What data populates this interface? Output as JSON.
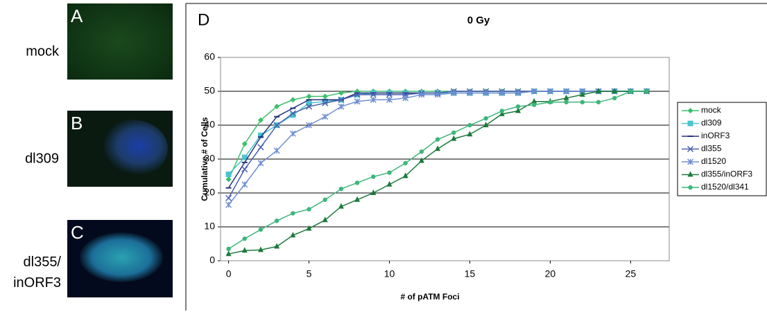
{
  "panels": [
    {
      "letter": "A",
      "label": "mock"
    },
    {
      "letter": "B",
      "label": "dl309"
    },
    {
      "letter": "C",
      "label": "dl355/ inORF3"
    }
  ],
  "chart_data": {
    "type": "line",
    "label": "D",
    "title": "0 Gy",
    "x_label": "# of pATM Foci",
    "y_label": "Cumulative # of Cells",
    "x": [
      0,
      1,
      2,
      3,
      4,
      5,
      6,
      7,
      8,
      9,
      10,
      11,
      12,
      13,
      14,
      15,
      16,
      17,
      18,
      19,
      20,
      21,
      22,
      23,
      24,
      25,
      26
    ],
    "xlim": [
      -0.5,
      27.4
    ],
    "xticks": [
      0,
      5,
      10,
      15,
      20,
      25
    ],
    "ylim": [
      0,
      60
    ],
    "yticks": [
      0,
      10,
      20,
      30,
      40,
      50,
      60
    ],
    "grid": true,
    "legend": "right",
    "series": [
      {
        "name": "mock",
        "color": "#3dbf6a",
        "marker": "diamond",
        "values": [
          24,
          34.5,
          41.5,
          45.5,
          47.5,
          48.5,
          48.5,
          49.5,
          50,
          50,
          50,
          50,
          50,
          50,
          50,
          50,
          50,
          50,
          50,
          50,
          50,
          50,
          50,
          50,
          50,
          50,
          50
        ]
      },
      {
        "name": "dl309",
        "color": "#4cc3cf",
        "marker": "square",
        "values": [
          25.5,
          30.5,
          37,
          40,
          43,
          46.5,
          47,
          47.5,
          49,
          49.5,
          49.5,
          49.5,
          49.5,
          49.5,
          49.5,
          49.5,
          49.5,
          49.5,
          49.5,
          50,
          50,
          50,
          50,
          50,
          50,
          50,
          50
        ]
      },
      {
        "name": "inORF3",
        "color": "#25307a",
        "marker": "dash",
        "values": [
          21.5,
          29,
          36.5,
          42.5,
          45,
          47.5,
          47.5,
          47.5,
          49.5,
          49.5,
          49.5,
          49.5,
          49.5,
          49.5,
          50,
          50,
          50,
          50,
          50,
          50,
          50,
          50,
          50,
          50,
          50,
          50,
          50
        ]
      },
      {
        "name": "dl355",
        "color": "#4a5fae",
        "marker": "cross",
        "values": [
          18.5,
          27,
          33.5,
          40,
          43.5,
          45.5,
          46.5,
          47.5,
          49,
          49,
          49,
          49,
          49.5,
          49.5,
          50,
          50,
          50,
          50,
          50,
          50,
          50,
          50,
          50,
          50,
          50,
          50,
          50
        ]
      },
      {
        "name": "dl1520",
        "color": "#6f8ed2",
        "marker": "star",
        "values": [
          16.5,
          22.5,
          28.8,
          32.5,
          37.5,
          40,
          42.5,
          45.5,
          47,
          47.5,
          47.5,
          48,
          49,
          49,
          49.5,
          49.5,
          49.5,
          49.5,
          49.5,
          50,
          50,
          50,
          50,
          50,
          50,
          50,
          50
        ]
      },
      {
        "name": "dl355/inORF3",
        "color": "#1c7a3c",
        "marker": "triangle",
        "values": [
          2,
          3,
          3.2,
          4.2,
          7.5,
          9.5,
          12,
          16,
          18,
          20,
          22.5,
          25,
          29.5,
          33,
          36,
          37.3,
          40,
          43.3,
          44.2,
          47,
          47,
          48,
          49,
          50,
          50,
          50,
          50
        ]
      },
      {
        "name": "dl1520/dl341",
        "color": "#3cb67a",
        "marker": "circle",
        "values": [
          3.5,
          6.5,
          9.2,
          11.8,
          14,
          15.2,
          18,
          21.2,
          23,
          24.8,
          26,
          28.8,
          32.2,
          35.8,
          37.8,
          40,
          42,
          44.2,
          45.5,
          46,
          46.8,
          46.8,
          46.8,
          46.8,
          48,
          50,
          50
        ]
      }
    ]
  }
}
